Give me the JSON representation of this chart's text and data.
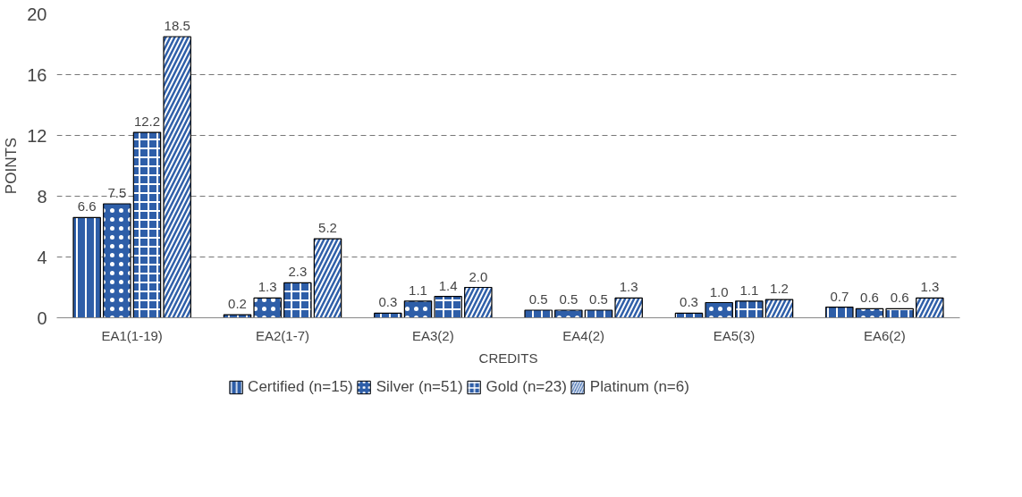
{
  "chart_data": {
    "type": "bar",
    "xlabel": "CREDITS",
    "ylabel": "POINTS",
    "categories": [
      "EA1(1-19)",
      "EA2(1-7)",
      "EA3(2)",
      "EA4(2)",
      "EA5(3)",
      "EA6(2)"
    ],
    "series": [
      {
        "name": "Certified (n=15)",
        "color": "#2e5ea8",
        "values": [
          6.6,
          0.2,
          0.3,
          0.5,
          0.3,
          0.7
        ],
        "value_labels": [
          "6.6",
          "0.2",
          "0.3",
          "0.5",
          "0.3",
          "0.7"
        ]
      },
      {
        "name": "Silver (n=51)",
        "color": "#2e5ea8",
        "values": [
          7.5,
          1.3,
          1.1,
          0.5,
          1.0,
          0.6
        ],
        "value_labels": [
          "7.5",
          "1.3",
          "1.1",
          "0.5",
          "1.0",
          "0.6"
        ]
      },
      {
        "name": "Gold (n=23)",
        "color": "#2e5ea8",
        "values": [
          12.2,
          2.3,
          1.4,
          0.5,
          1.1,
          0.6
        ],
        "value_labels": [
          "12.2",
          "2.3",
          "1.4",
          "0.5",
          "1.1",
          "0.6"
        ]
      },
      {
        "name": "Platinum (n=6)",
        "color": "#2e5ea8",
        "values": [
          18.5,
          5.2,
          2.0,
          1.3,
          1.2,
          1.3
        ],
        "value_labels": [
          "18.5",
          "5.2",
          "2.0",
          "1.3",
          "1.2",
          "1.3"
        ]
      }
    ],
    "ylim": [
      0,
      20
    ],
    "yticks": [
      0,
      4,
      8,
      12,
      16,
      20
    ],
    "grid": "y",
    "legend": "bottom"
  }
}
